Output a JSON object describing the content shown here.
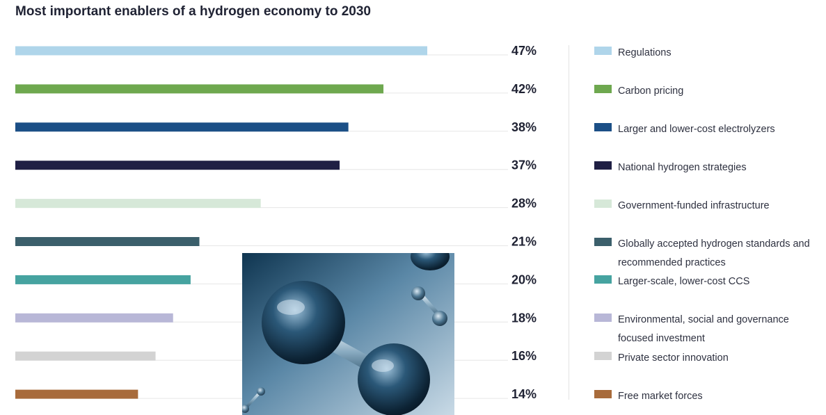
{
  "title": "Most important enablers of a hydrogen economy to 2030",
  "chart_data": {
    "type": "bar",
    "orientation": "horizontal",
    "title": "Most important enablers of a hydrogen economy to 2030",
    "xlim": [
      0,
      60
    ],
    "unit": "%",
    "grid": false,
    "legend_position": "right",
    "bars": [
      {
        "label": "Regulations",
        "value": 47,
        "display": "47%",
        "color": "#afd5ea"
      },
      {
        "label": "Carbon pricing",
        "value": 42,
        "display": "42%",
        "color": "#6ea84f"
      },
      {
        "label": "Larger and lower-cost electrolyzers",
        "value": 38,
        "display": "38%",
        "color": "#1b4f86"
      },
      {
        "label": "National hydrogen strategies",
        "value": 37,
        "display": "37%",
        "color": "#1f1f44"
      },
      {
        "label": "Government-funded infrastructure",
        "value": 28,
        "display": "28%",
        "color": "#d6e8d8"
      },
      {
        "label": "Globally accepted hydrogen standards and recommended practices",
        "value": 21,
        "display": "21%",
        "color": "#3b5f6b"
      },
      {
        "label": "Larger-scale, lower-cost CCS",
        "value": 20,
        "display": "20%",
        "color": "#46a3a0"
      },
      {
        "label": "Environmental, social and governance focused investment",
        "value": 18,
        "display": "18%",
        "color": "#b8b7d7"
      },
      {
        "label": "Private sector innovation",
        "value": 16,
        "display": "16%",
        "color": "#d3d3d3"
      },
      {
        "label": "Free market forces",
        "value": 14,
        "display": "14%",
        "color": "#a86b3b"
      }
    ]
  },
  "image": {
    "subject": "hydrogen-molecule-photo"
  }
}
